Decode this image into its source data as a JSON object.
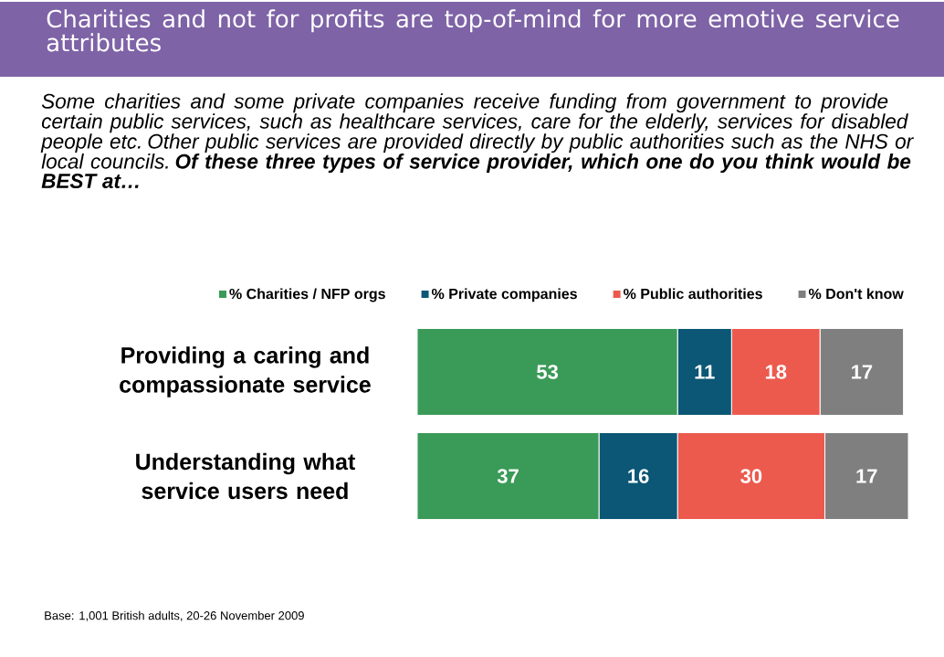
{
  "chart_data": {
    "type": "bar",
    "orientation": "horizontal",
    "stacked": true,
    "data_labels": true,
    "legend": "top",
    "title": "Charities and not for profits are top-of-mind for more emotive service attributes",
    "subtitle": "Some charities and some private companies receive funding from government to provide certain public services, such as healthcare services, care for the elderly, services for disabled people etc. Other public services are provided directly by public authorities such as the NHS or local councils. **Of these three types of service provider, which one do you think would be BEST at…**",
    "annotations": [
      "Base: 1,001 British adults, 20-26 November 2009"
    ],
    "categories": [
      "Providing a caring and compassionate service",
      "Understanding what service users need"
    ],
    "series": [
      {
        "name": "% Charities / NFP orgs",
        "color": "#3a9a57",
        "values": [
          53,
          37
        ]
      },
      {
        "name": "% Private companies",
        "color": "#0b5775",
        "values": [
          11,
          16
        ]
      },
      {
        "name": "% Public authorities",
        "color": "#ec5a4e",
        "values": [
          18,
          30
        ]
      },
      {
        "name": "% Don't know",
        "color": "#7f7f7f",
        "values": [
          17,
          17
        ]
      }
    ]
  }
}
